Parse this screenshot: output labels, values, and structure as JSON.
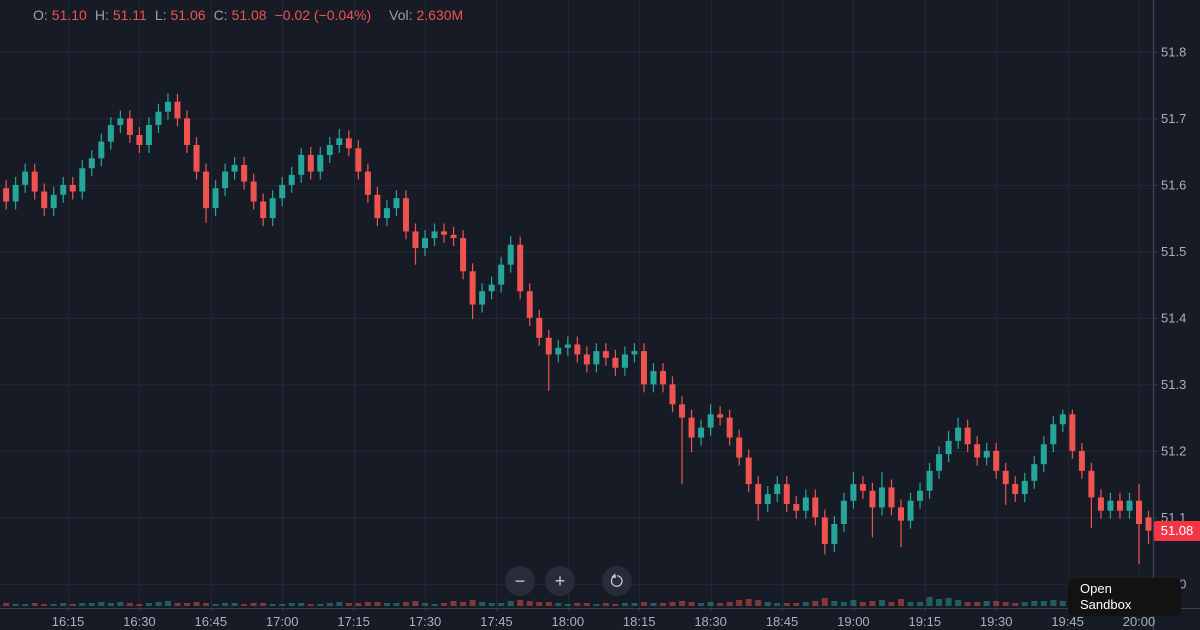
{
  "legend": {
    "o_label": "O:",
    "o_value": "51.10",
    "h_label": "H:",
    "h_value": "51.11",
    "l_label": "L:",
    "l_value": "51.06",
    "c_label": "C:",
    "c_value": "51.08",
    "change": "−0.02 (−0.04%)",
    "vol_label": "Vol:",
    "vol_value": "2.630M"
  },
  "price_badge": "51.08",
  "controls": {
    "zoom_out": "−",
    "zoom_in": "+",
    "reset_icon": "reset-arrow"
  },
  "overlay": {
    "open_sandbox": "Open Sandbox"
  },
  "colors": {
    "background": "#171b26",
    "grid": "#232837",
    "up": "#26a69a",
    "down": "#ef5350",
    "axis_text": "#aab0bc",
    "axis_line": "#3a4050",
    "badge_bg": "#f23645",
    "badge_text": "#ffffff",
    "legend_label": "#9aa0ab",
    "legend_value": "#ef5350",
    "button_bg": "#2a2e39",
    "button_icon": "#c7cbd4",
    "tooltip_bg": "#121212",
    "tooltip_text": "#ffffff"
  },
  "chart_data": {
    "type": "candlestick",
    "title": "",
    "last_candle": {
      "open": 51.1,
      "high": 51.11,
      "low": 51.06,
      "close": 51.08,
      "change": -0.02,
      "change_pct": "-0.04%",
      "volume": "2.630M"
    },
    "last_price": 51.08,
    "start_time": "16:00",
    "interval_minutes": 2,
    "x_axis": {
      "labels": [
        "16:15",
        "16:30",
        "16:45",
        "17:00",
        "17:15",
        "17:30",
        "17:45",
        "18:00",
        "18:15",
        "18:30",
        "18:45",
        "19:00",
        "19:15",
        "19:30",
        "19:45",
        "20:00"
      ]
    },
    "y_axis": {
      "ticks": [
        "51.8",
        "51.7",
        "51.6",
        "51.5",
        "51.4",
        "51.3",
        "51.2",
        "51.1",
        "51.0"
      ],
      "range": [
        50.965,
        51.878
      ]
    },
    "grid": true,
    "legend_position": "top-left",
    "candles": [
      [
        51.615,
        51.627,
        51.583,
        51.595
      ],
      [
        51.595,
        51.607,
        51.563,
        51.575
      ],
      [
        51.575,
        51.612,
        51.563,
        51.6
      ],
      [
        51.6,
        51.632,
        51.588,
        51.62
      ],
      [
        51.62,
        51.632,
        51.578,
        51.59
      ],
      [
        51.59,
        51.602,
        51.553,
        51.565
      ],
      [
        51.565,
        51.597,
        51.553,
        51.585
      ],
      [
        51.585,
        51.612,
        51.573,
        51.6
      ],
      [
        51.6,
        51.612,
        51.578,
        51.59
      ],
      [
        51.59,
        51.637,
        51.578,
        51.625
      ],
      [
        51.625,
        51.652,
        51.613,
        51.64
      ],
      [
        51.64,
        51.677,
        51.628,
        51.665
      ],
      [
        51.665,
        51.702,
        51.653,
        51.69
      ],
      [
        51.69,
        51.712,
        51.678,
        51.7
      ],
      [
        51.7,
        51.712,
        51.663,
        51.675
      ],
      [
        51.675,
        51.687,
        51.648,
        51.66
      ],
      [
        51.66,
        51.702,
        51.648,
        51.69
      ],
      [
        51.69,
        51.722,
        51.678,
        51.71
      ],
      [
        51.71,
        51.738,
        51.698,
        51.725
      ],
      [
        51.725,
        51.737,
        51.688,
        51.7
      ],
      [
        51.7,
        51.712,
        51.648,
        51.66
      ],
      [
        51.66,
        51.672,
        51.608,
        51.62
      ],
      [
        51.62,
        51.632,
        51.543,
        51.565
      ],
      [
        51.565,
        51.607,
        51.553,
        51.595
      ],
      [
        51.595,
        51.632,
        51.583,
        51.62
      ],
      [
        51.62,
        51.642,
        51.608,
        51.63
      ],
      [
        51.63,
        51.642,
        51.593,
        51.605
      ],
      [
        51.605,
        51.617,
        51.563,
        51.575
      ],
      [
        51.575,
        51.587,
        51.538,
        51.55
      ],
      [
        51.55,
        51.592,
        51.538,
        51.58
      ],
      [
        51.58,
        51.612,
        51.568,
        51.6
      ],
      [
        51.6,
        51.627,
        51.588,
        51.615
      ],
      [
        51.615,
        51.655,
        51.603,
        51.645
      ],
      [
        51.645,
        51.657,
        51.608,
        51.62
      ],
      [
        51.62,
        51.657,
        51.608,
        51.645
      ],
      [
        51.645,
        51.672,
        51.633,
        51.66
      ],
      [
        51.66,
        51.684,
        51.648,
        51.67
      ],
      [
        51.67,
        51.682,
        51.643,
        51.655
      ],
      [
        51.655,
        51.667,
        51.608,
        51.62
      ],
      [
        51.62,
        51.632,
        51.573,
        51.585
      ],
      [
        51.585,
        51.597,
        51.538,
        51.55
      ],
      [
        51.55,
        51.577,
        51.538,
        51.565
      ],
      [
        51.565,
        51.592,
        51.553,
        51.58
      ],
      [
        51.58,
        51.592,
        51.518,
        51.53
      ],
      [
        51.53,
        51.542,
        51.48,
        51.505
      ],
      [
        51.505,
        51.532,
        51.493,
        51.52
      ],
      [
        51.52,
        51.542,
        51.508,
        51.53
      ],
      [
        51.53,
        51.542,
        51.513,
        51.525
      ],
      [
        51.525,
        51.537,
        51.508,
        51.52
      ],
      [
        51.52,
        51.532,
        51.458,
        51.47
      ],
      [
        51.47,
        51.482,
        51.398,
        51.42
      ],
      [
        51.42,
        51.452,
        51.408,
        51.44
      ],
      [
        51.44,
        51.462,
        51.428,
        51.45
      ],
      [
        51.45,
        51.492,
        51.438,
        51.48
      ],
      [
        51.48,
        51.523,
        51.468,
        51.51
      ],
      [
        51.51,
        51.522,
        51.428,
        51.44
      ],
      [
        51.44,
        51.452,
        51.388,
        51.4
      ],
      [
        51.4,
        51.412,
        51.358,
        51.37
      ],
      [
        51.37,
        51.382,
        51.29,
        51.345
      ],
      [
        51.345,
        51.367,
        51.333,
        51.355
      ],
      [
        51.355,
        51.372,
        51.343,
        51.36
      ],
      [
        51.36,
        51.372,
        51.333,
        51.345
      ],
      [
        51.345,
        51.357,
        51.318,
        51.33
      ],
      [
        51.33,
        51.362,
        51.318,
        51.35
      ],
      [
        51.35,
        51.362,
        51.328,
        51.34
      ],
      [
        51.34,
        51.352,
        51.313,
        51.325
      ],
      [
        51.325,
        51.357,
        51.313,
        51.345
      ],
      [
        51.345,
        51.362,
        51.333,
        51.35
      ],
      [
        51.35,
        51.362,
        51.288,
        51.3
      ],
      [
        51.3,
        51.332,
        51.288,
        51.32
      ],
      [
        51.32,
        51.332,
        51.288,
        51.3
      ],
      [
        51.3,
        51.312,
        51.258,
        51.27
      ],
      [
        51.27,
        51.282,
        51.15,
        51.25
      ],
      [
        51.25,
        51.262,
        51.198,
        51.22
      ],
      [
        51.22,
        51.247,
        51.208,
        51.235
      ],
      [
        51.235,
        51.27,
        51.223,
        51.255
      ],
      [
        51.255,
        51.267,
        51.238,
        51.25
      ],
      [
        51.25,
        51.262,
        51.208,
        51.22
      ],
      [
        51.22,
        51.232,
        51.178,
        51.19
      ],
      [
        51.19,
        51.202,
        51.138,
        51.15
      ],
      [
        51.15,
        51.162,
        51.095,
        51.12
      ],
      [
        51.12,
        51.147,
        51.108,
        51.135
      ],
      [
        51.135,
        51.162,
        51.123,
        51.15
      ],
      [
        51.15,
        51.162,
        51.108,
        51.12
      ],
      [
        51.12,
        51.132,
        51.098,
        51.11
      ],
      [
        51.11,
        51.142,
        51.098,
        51.13
      ],
      [
        51.13,
        51.142,
        51.088,
        51.1
      ],
      [
        51.1,
        51.112,
        51.044,
        51.06
      ],
      [
        51.06,
        51.102,
        51.048,
        51.09
      ],
      [
        51.09,
        51.137,
        51.078,
        51.125
      ],
      [
        51.125,
        51.168,
        51.113,
        51.15
      ],
      [
        51.15,
        51.162,
        51.128,
        51.14
      ],
      [
        51.14,
        51.152,
        51.07,
        51.115
      ],
      [
        51.115,
        51.168,
        51.103,
        51.145
      ],
      [
        51.145,
        51.157,
        51.103,
        51.115
      ],
      [
        51.115,
        51.127,
        51.055,
        51.095
      ],
      [
        51.095,
        51.137,
        51.083,
        51.125
      ],
      [
        51.125,
        51.152,
        51.113,
        51.14
      ],
      [
        51.14,
        51.182,
        51.128,
        51.17
      ],
      [
        51.17,
        51.207,
        51.158,
        51.195
      ],
      [
        51.195,
        51.23,
        51.183,
        51.215
      ],
      [
        51.215,
        51.25,
        51.203,
        51.235
      ],
      [
        51.235,
        51.247,
        51.198,
        51.21
      ],
      [
        51.21,
        51.222,
        51.178,
        51.19
      ],
      [
        51.19,
        51.212,
        51.178,
        51.2
      ],
      [
        51.2,
        51.212,
        51.158,
        51.17
      ],
      [
        51.17,
        51.182,
        51.119,
        51.15
      ],
      [
        51.15,
        51.162,
        51.123,
        51.135
      ],
      [
        51.135,
        51.167,
        51.123,
        51.155
      ],
      [
        51.155,
        51.192,
        51.143,
        51.18
      ],
      [
        51.18,
        51.222,
        51.168,
        51.21
      ],
      [
        51.21,
        51.252,
        51.198,
        51.24
      ],
      [
        51.24,
        51.262,
        51.228,
        51.255
      ],
      [
        51.255,
        51.262,
        51.188,
        51.2
      ],
      [
        51.2,
        51.212,
        51.158,
        51.17
      ],
      [
        51.17,
        51.182,
        51.084,
        51.13
      ],
      [
        51.13,
        51.142,
        51.098,
        51.11
      ],
      [
        51.11,
        51.137,
        51.098,
        51.125
      ],
      [
        51.125,
        51.137,
        51.098,
        51.11
      ],
      [
        51.11,
        51.137,
        51.098,
        51.125
      ],
      [
        51.125,
        51.15,
        51.03,
        51.09
      ],
      [
        51.1,
        51.11,
        51.06,
        51.08
      ]
    ],
    "volumes": [
      2,
      3,
      2,
      2,
      3,
      2,
      2,
      3,
      2,
      3,
      3,
      4,
      3,
      4,
      3,
      2,
      3,
      4,
      5,
      3,
      3,
      4,
      3,
      2,
      3,
      3,
      2,
      3,
      3,
      2,
      2,
      3,
      3,
      2,
      2,
      3,
      4,
      3,
      3,
      4,
      4,
      3,
      3,
      4,
      5,
      3,
      2,
      3,
      5,
      4,
      6,
      4,
      3,
      3,
      5,
      6,
      5,
      4,
      4,
      3,
      2,
      3,
      3,
      2,
      3,
      2,
      3,
      3,
      4,
      3,
      3,
      4,
      5,
      4,
      3,
      4,
      3,
      4,
      6,
      7,
      6,
      4,
      3,
      3,
      3,
      4,
      5,
      8,
      5,
      4,
      6,
      4,
      5,
      6,
      4,
      7,
      4,
      4,
      9,
      7,
      8,
      6,
      4,
      4,
      5,
      5,
      4,
      3,
      4,
      5,
      5,
      6,
      5,
      7,
      4,
      7,
      4,
      3,
      3,
      4,
      10,
      13
    ]
  }
}
